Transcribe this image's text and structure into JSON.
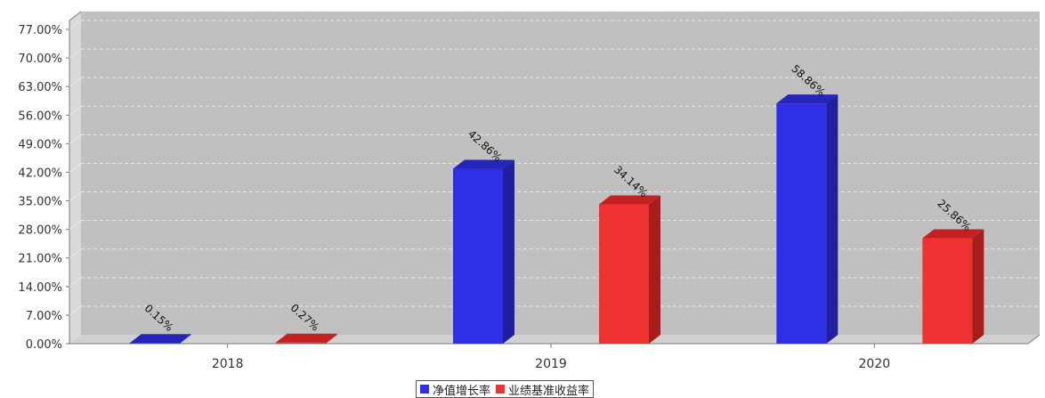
{
  "chart_data": {
    "type": "bar",
    "categories": [
      "2018",
      "2019",
      "2020"
    ],
    "series": [
      {
        "name": "净值增长率",
        "values": [
          0.15,
          42.86,
          58.86
        ],
        "labels": [
          "0.15%",
          "42.86%",
          "58.86%"
        ],
        "color": "#2f2fe8",
        "side_color": "#1f1fa0",
        "top_color": "#2525b8"
      },
      {
        "name": "业绩基准收益率",
        "values": [
          0.27,
          34.14,
          25.86
        ],
        "labels": [
          "0.27%",
          "34.14%",
          "25.86%"
        ],
        "color": "#ee3131",
        "side_color": "#a81c1c",
        "top_color": "#c42222"
      }
    ],
    "yticks": [
      "0.00%",
      "7.00%",
      "14.00%",
      "21.00%",
      "28.00%",
      "35.00%",
      "42.00%",
      "49.00%",
      "56.00%",
      "63.00%",
      "70.00%",
      "77.00%"
    ],
    "ylim": [
      0,
      77
    ],
    "grid": true,
    "legend_position": "bottom-center",
    "plot_background": "#c0c0c0"
  }
}
